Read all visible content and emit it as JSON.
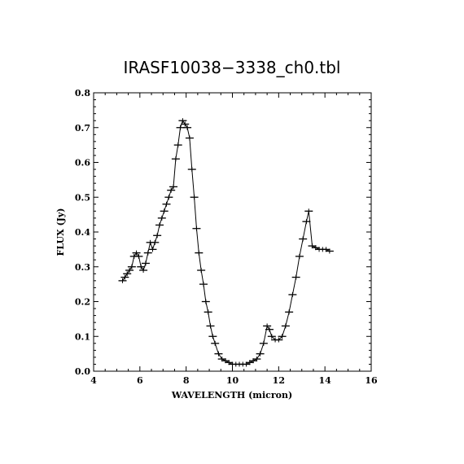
{
  "chart_data": {
    "type": "line",
    "title": "IRASF10038−3338_ch0.tbl",
    "xlabel": "WAVELENGTH (micron)",
    "ylabel": "FLUX (Jy)",
    "xlim": [
      4,
      16
    ],
    "ylim": [
      0,
      0.8
    ],
    "xticks": [
      "4",
      "6",
      "8",
      "10",
      "12",
      "14",
      "16"
    ],
    "yticks": [
      "0.0",
      "0.1",
      "0.2",
      "0.3",
      "0.4",
      "0.5",
      "0.6",
      "0.7",
      "0.8"
    ],
    "grid": false,
    "legend": "none",
    "series": [
      {
        "x": [
          5.25,
          5.35,
          5.45,
          5.55,
          5.65,
          5.75,
          5.85,
          5.95,
          6.05,
          6.15,
          6.25,
          6.35,
          6.45,
          6.55,
          6.65,
          6.75,
          6.85,
          6.95,
          7.05,
          7.15,
          7.25,
          7.35,
          7.45,
          7.55,
          7.65,
          7.75,
          7.85,
          7.95,
          8.05,
          8.15,
          8.25,
          8.35,
          8.45,
          8.55,
          8.65,
          8.75,
          8.85,
          8.95,
          9.05,
          9.15,
          9.25,
          9.4,
          9.55,
          9.7,
          9.85,
          10.0,
          10.15,
          10.3,
          10.45,
          10.6,
          10.75,
          10.9,
          11.05,
          11.2,
          11.35,
          11.5,
          11.6,
          11.7,
          11.85,
          12.0,
          12.15,
          12.3,
          12.45,
          12.6,
          12.75,
          12.9,
          13.05,
          13.2,
          13.3,
          13.45,
          13.6,
          13.75,
          13.9,
          14.05,
          14.2
        ],
        "values": [
          0.26,
          0.27,
          0.28,
          0.29,
          0.3,
          0.33,
          0.34,
          0.33,
          0.3,
          0.29,
          0.31,
          0.34,
          0.37,
          0.35,
          0.37,
          0.39,
          0.42,
          0.44,
          0.46,
          0.48,
          0.5,
          0.52,
          0.53,
          0.61,
          0.65,
          0.7,
          0.72,
          0.71,
          0.7,
          0.67,
          0.58,
          0.5,
          0.41,
          0.34,
          0.29,
          0.25,
          0.2,
          0.17,
          0.13,
          0.1,
          0.08,
          0.05,
          0.035,
          0.03,
          0.025,
          0.02,
          0.02,
          0.02,
          0.02,
          0.02,
          0.025,
          0.03,
          0.035,
          0.05,
          0.08,
          0.13,
          0.12,
          0.1,
          0.09,
          0.09,
          0.1,
          0.13,
          0.17,
          0.22,
          0.27,
          0.33,
          0.38,
          0.43,
          0.46,
          0.36,
          0.355,
          0.35,
          0.35,
          0.35,
          0.345
        ]
      }
    ]
  }
}
